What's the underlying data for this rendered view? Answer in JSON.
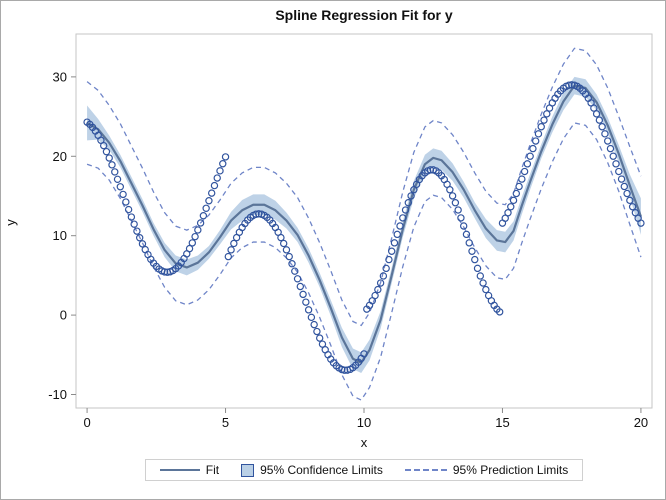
{
  "figure": {
    "title": "Spline Regression Fit for y"
  },
  "legend": {
    "items": [
      {
        "label": "Fit",
        "swatch": "fit-line-swatch"
      },
      {
        "label": "95% Confidence Limits",
        "swatch": "confidence-band-swatch"
      },
      {
        "label": "95% Prediction Limits",
        "swatch": "prediction-dash-swatch"
      }
    ]
  },
  "colors": {
    "marker": "#31549e",
    "fit_line": "#5b7599",
    "ci_band": "#bad0e6",
    "pi_line": "#6f85c8",
    "frame": "#c6c6c6",
    "tick": "#8a8a8a",
    "text": "#111111"
  },
  "chart_data": {
    "type": "scatter",
    "title": "Spline Regression Fit for y",
    "xlabel": "x",
    "ylabel": "y",
    "xlim": [
      -0.4,
      20.4
    ],
    "ylim": [
      -11.7,
      35.4
    ],
    "x_ticks": [
      0,
      5,
      10,
      15,
      20
    ],
    "y_ticks": [
      -10,
      0,
      10,
      20,
      30
    ],
    "grid": false,
    "legend_position": "bottom-outside",
    "scatter": {
      "name": "observed y",
      "x_start": 0,
      "x_step": 0.1,
      "y": [
        24.3,
        24.02,
        23.64,
        23.18,
        22.64,
        22.02,
        21.34,
        20.58,
        19.78,
        18.92,
        18.03,
        17.1,
        16.16,
        15.2,
        14.24,
        13.29,
        12.35,
        11.45,
        10.57,
        9.74,
        8.97,
        8.25,
        7.61,
        7.03,
        6.54,
        6.13,
        5.8,
        5.57,
        5.44,
        5.4,
        5.46,
        5.61,
        5.85,
        6.19,
        6.62,
        7.12,
        7.71,
        8.37,
        9.09,
        9.88,
        10.72,
        11.6,
        12.51,
        13.45,
        14.4,
        15.36,
        16.31,
        17.26,
        18.17,
        19.06,
        19.92,
        7.37,
        8.22,
        9.02,
        9.76,
        10.43,
        11.03,
        11.54,
        11.97,
        12.31,
        12.55,
        12.7,
        12.75,
        12.7,
        12.55,
        12.31,
        11.97,
        11.54,
        11.03,
        10.43,
        9.76,
        9.02,
        8.22,
        7.37,
        6.47,
        5.53,
        4.57,
        3.6,
        2.61,
        1.63,
        0.66,
        -0.28,
        -1.2,
        -2.07,
        -2.9,
        -3.66,
        -4.36,
        -4.99,
        -5.54,
        -6.01,
        -6.38,
        -6.66,
        -6.85,
        -6.94,
        -6.93,
        -6.83,
        -6.62,
        -6.32,
        -5.93,
        -5.45,
        -4.89,
        0.75,
        1.23,
        1.8,
        2.46,
        3.21,
        4.04,
        4.93,
        5.89,
        6.99,
        8.04,
        9.1,
        10.17,
        11.22,
        12.24,
        13.23,
        14.15,
        15.01,
        15.79,
        16.47,
        17.07,
        17.55,
        17.91,
        18.16,
        18.29,
        18.29,
        18.16,
        17.91,
        17.55,
        17.07,
        16.47,
        15.79,
        15.01,
        14.15,
        13.23,
        12.24,
        11.22,
        10.17,
        9.1,
        8.04,
        6.99,
        5.89,
        4.93,
        4.04,
        3.21,
        2.46,
        1.8,
        1.23,
        0.75,
        0.4,
        11.58,
        12.2,
        12.89,
        13.64,
        14.45,
        15.31,
        16.2,
        17.13,
        18.08,
        19.05,
        20.01,
        20.97,
        21.92,
        22.83,
        23.72,
        24.55,
        25.34,
        26.07,
        26.73,
        27.31,
        27.82,
        28.24,
        28.57,
        28.81,
        28.95,
        29.0,
        28.95,
        28.81,
        28.57,
        28.24,
        27.82,
        27.31,
        26.73,
        26.07,
        25.34,
        24.55,
        23.72,
        22.83,
        21.92,
        20.97,
        20.01,
        19.05,
        18.08,
        17.13,
        16.2,
        15.31,
        14.45,
        13.64,
        12.89,
        12.2,
        11.58
      ]
    },
    "fit": {
      "name": "Fit",
      "x": [
        0,
        0.4,
        0.8,
        1.2,
        1.6,
        2,
        2.4,
        2.8,
        3.2,
        3.6,
        4,
        4.4,
        4.8,
        5.2,
        5.6,
        6,
        6.4,
        6.8,
        7.2,
        7.6,
        8,
        8.4,
        8.8,
        9.2,
        9.6,
        9.9,
        10.2,
        10.6,
        11,
        11.4,
        11.8,
        12.2,
        12.5,
        12.8,
        13.2,
        13.6,
        14,
        14.4,
        14.8,
        15.1,
        15.4,
        15.7,
        16,
        16.4,
        16.8,
        17.2,
        17.6,
        18,
        18.4,
        18.8,
        19.2,
        19.6,
        20
      ],
      "y": [
        24.2,
        23.4,
        21.7,
        19.4,
        16.6,
        13.8,
        10.8,
        8.2,
        6.5,
        6.0,
        6.6,
        7.9,
        9.8,
        11.9,
        13.2,
        13.9,
        13.9,
        13.2,
        11.9,
        10.1,
        7.5,
        4.4,
        0.9,
        -2.8,
        -5.5,
        -6.0,
        -4.4,
        -0.6,
        5.0,
        10.8,
        15.8,
        19.0,
        19.8,
        19.5,
        18.0,
        15.8,
        13.2,
        10.9,
        9.4,
        9.2,
        10.6,
        13.8,
        16.8,
        20.6,
        24.0,
        26.9,
        28.9,
        28.6,
        26.8,
        23.9,
        20.3,
        16.3,
        12.4
      ]
    },
    "confidence_limits": {
      "name": "95% Confidence Limits",
      "half_width": [
        2.2,
        1.3,
        0.9,
        0.8,
        0.8,
        0.8,
        0.8,
        0.9,
        1.0,
        1.0,
        0.9,
        0.8,
        0.9,
        1.1,
        1.3,
        1.3,
        1.3,
        1.2,
        1.0,
        0.9,
        0.9,
        0.9,
        1.0,
        1.2,
        1.3,
        1.3,
        1.3,
        1.1,
        1.0,
        1.0,
        1.1,
        1.2,
        1.2,
        1.2,
        1.1,
        1.0,
        1.0,
        1.2,
        1.3,
        1.3,
        1.2,
        1.1,
        1.0,
        0.9,
        1.0,
        1.1,
        1.1,
        1.1,
        1.0,
        1.0,
        1.1,
        1.4,
        2.3
      ]
    },
    "prediction_limits": {
      "name": "95% Prediction Limits",
      "half_width": [
        5.2,
        4.9,
        4.7,
        4.7,
        4.7,
        4.7,
        4.7,
        4.7,
        4.7,
        4.7,
        4.7,
        4.7,
        4.7,
        4.7,
        4.7,
        4.7,
        4.7,
        4.7,
        4.7,
        4.7,
        4.7,
        4.7,
        4.7,
        4.7,
        4.7,
        4.7,
        4.7,
        4.7,
        4.7,
        4.7,
        4.7,
        4.7,
        4.7,
        4.7,
        4.7,
        4.7,
        4.7,
        4.7,
        4.7,
        4.7,
        4.7,
        4.7,
        4.7,
        4.7,
        4.7,
        4.7,
        4.7,
        4.7,
        4.7,
        4.7,
        4.7,
        4.9,
        5.1
      ]
    }
  }
}
